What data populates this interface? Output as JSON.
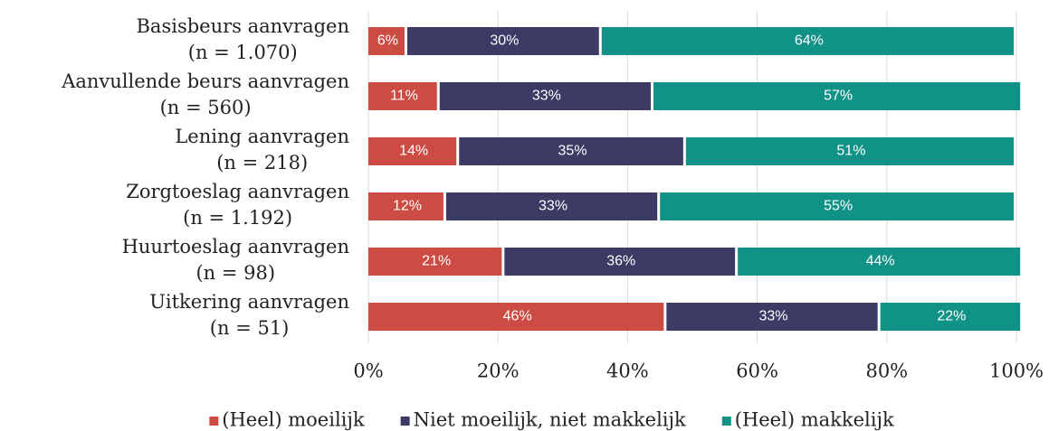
{
  "chart_data": {
    "type": "stacked_bar_horizontal",
    "categories": [
      [
        "Basisbeurs aanvragen",
        "(n = 1.070)"
      ],
      [
        "Aanvullende beurs aanvragen",
        "(n = 560)"
      ],
      [
        "Lening aanvragen",
        "(n = 218)"
      ],
      [
        "Zorgtoeslag aanvragen",
        "(n = 1.192)"
      ],
      [
        "Huurtoeslag aanvragen",
        "(n = 98)"
      ],
      [
        "Uitkering aanvragen",
        "(n = 51)"
      ]
    ],
    "series": [
      {
        "name": "(Heel) moeilijk",
        "color": "#cc4c44",
        "values": [
          6,
          11,
          14,
          12,
          21,
          46
        ],
        "value_labels": [
          "6%",
          "11%",
          "14%",
          "12%",
          "21%",
          "46%"
        ]
      },
      {
        "name": "Niet moeilijk, niet makkelijk",
        "color": "#3b3b66",
        "values": [
          30,
          33,
          35,
          33,
          36,
          33
        ],
        "value_labels": [
          "30%",
          "33%",
          "35%",
          "33%",
          "36%",
          "33%"
        ]
      },
      {
        "name": "(Heel) makkelijk",
        "color": "#119287",
        "values": [
          64,
          57,
          51,
          55,
          44,
          22
        ],
        "value_labels": [
          "64%",
          "57%",
          "51%",
          "55%",
          "44%",
          "22%"
        ]
      }
    ],
    "xlim": [
      0,
      100
    ],
    "xticks": [
      {
        "value": 0,
        "label": "0%"
      },
      {
        "value": 20,
        "label": "20%"
      },
      {
        "value": 40,
        "label": "40%"
      },
      {
        "value": 60,
        "label": "60%"
      },
      {
        "value": 80,
        "label": "80%"
      },
      {
        "value": 100,
        "label": "100%"
      }
    ],
    "grid": true,
    "legend": "bottom"
  }
}
